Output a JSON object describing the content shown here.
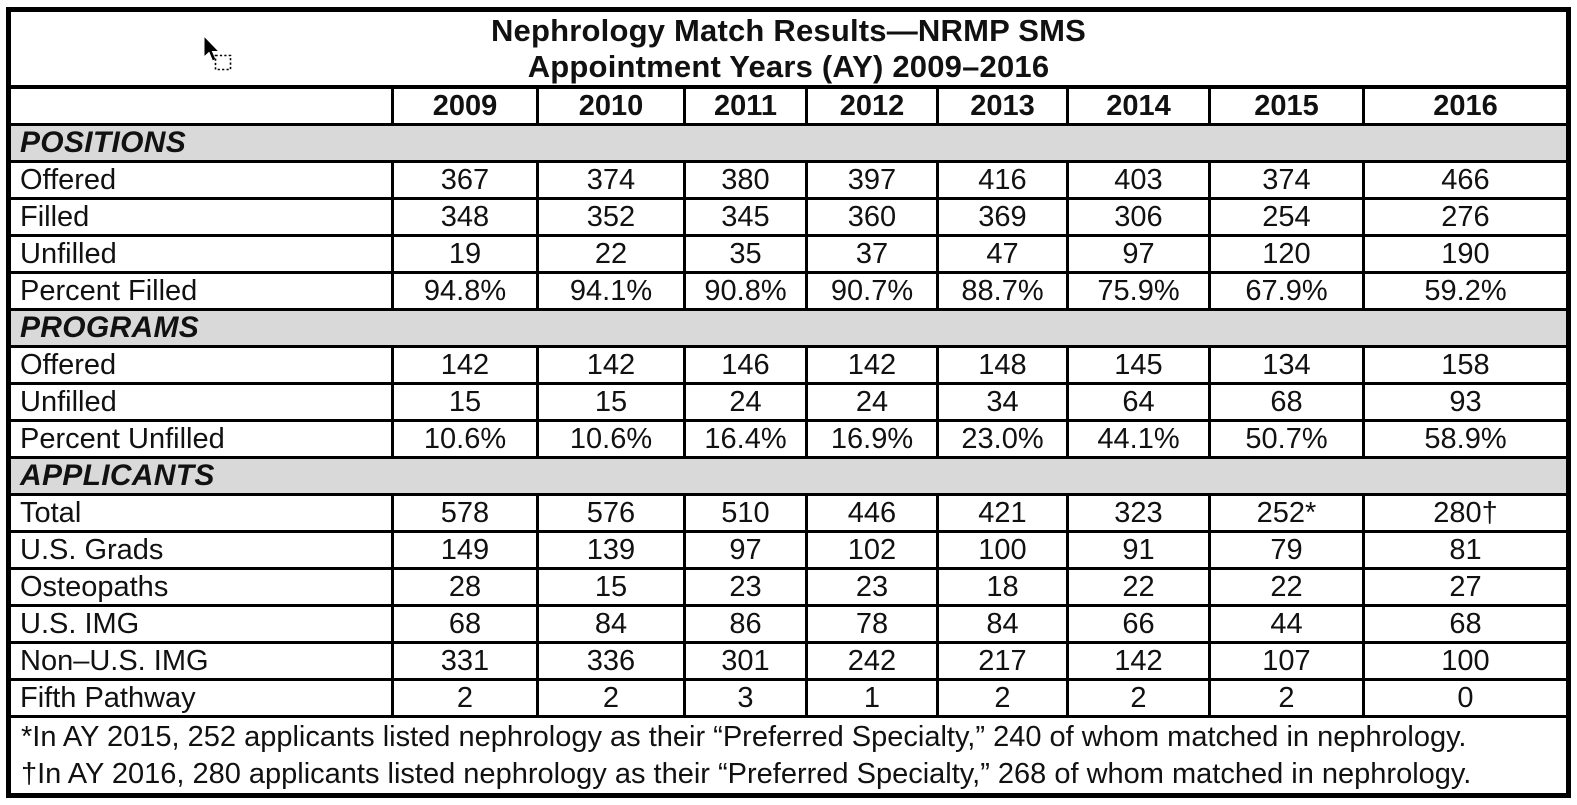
{
  "title": {
    "line1": "Nephrology Match Results—NRMP SMS",
    "line2": "Appointment Years (AY) 2009–2016"
  },
  "columns": [
    "2009",
    "2010",
    "2011",
    "2012",
    "2013",
    "2014",
    "2015",
    "2016"
  ],
  "sections": [
    {
      "label": "POSITIONS",
      "rows": [
        {
          "label": "Offered",
          "values": [
            "367",
            "374",
            "380",
            "397",
            "416",
            "403",
            "374",
            "466"
          ]
        },
        {
          "label": "Filled",
          "values": [
            "348",
            "352",
            "345",
            "360",
            "369",
            "306",
            "254",
            "276"
          ]
        },
        {
          "label": "Unfilled",
          "values": [
            "19",
            "22",
            "35",
            "37",
            "47",
            "97",
            "120",
            "190"
          ]
        },
        {
          "label": "Percent Filled",
          "values": [
            "94.8%",
            "94.1%",
            "90.8%",
            "90.7%",
            "88.7%",
            "75.9%",
            "67.9%",
            "59.2%"
          ]
        }
      ]
    },
    {
      "label": "PROGRAMS",
      "rows": [
        {
          "label": "Offered",
          "values": [
            "142",
            "142",
            "146",
            "142",
            "148",
            "145",
            "134",
            "158"
          ]
        },
        {
          "label": "Unfilled",
          "values": [
            "15",
            "15",
            "24",
            "24",
            "34",
            "64",
            "68",
            "93"
          ]
        },
        {
          "label": "Percent Unfilled",
          "values": [
            "10.6%",
            "10.6%",
            "16.4%",
            "16.9%",
            "23.0%",
            "44.1%",
            "50.7%",
            "58.9%"
          ]
        }
      ]
    },
    {
      "label": "APPLICANTS",
      "rows": [
        {
          "label": "Total",
          "values": [
            "578",
            "576",
            "510",
            "446",
            "421",
            "323",
            "252*",
            "280†"
          ]
        },
        {
          "label": "U.S. Grads",
          "values": [
            "149",
            "139",
            "97",
            "102",
            "100",
            "91",
            "79",
            "81"
          ]
        },
        {
          "label": "Osteopaths",
          "values": [
            "28",
            "15",
            "23",
            "23",
            "18",
            "22",
            "22",
            "27"
          ]
        },
        {
          "label": "U.S. IMG",
          "values": [
            "68",
            "84",
            "86",
            "78",
            "84",
            "66",
            "44",
            "68"
          ]
        },
        {
          "label": "Non–U.S. IMG",
          "values": [
            "331",
            "336",
            "301",
            "242",
            "217",
            "142",
            "107",
            "100"
          ]
        },
        {
          "label": "Fifth Pathway",
          "values": [
            "2",
            "2",
            "3",
            "1",
            "2",
            "2",
            "2",
            "0"
          ]
        }
      ]
    }
  ],
  "footnotes": [
    "*In AY 2015, 252 applicants listed nephrology as their “Preferred Specialty,” 240 of whom matched in nephrology.",
    "†In AY 2016, 280 applicants listed nephrology as their “Preferred Specialty,” 268 of whom matched in nephrology."
  ],
  "colors": {
    "section_band": "#d9d9d9",
    "border": "#000000",
    "background": "#ffffff",
    "text": "#111111"
  }
}
